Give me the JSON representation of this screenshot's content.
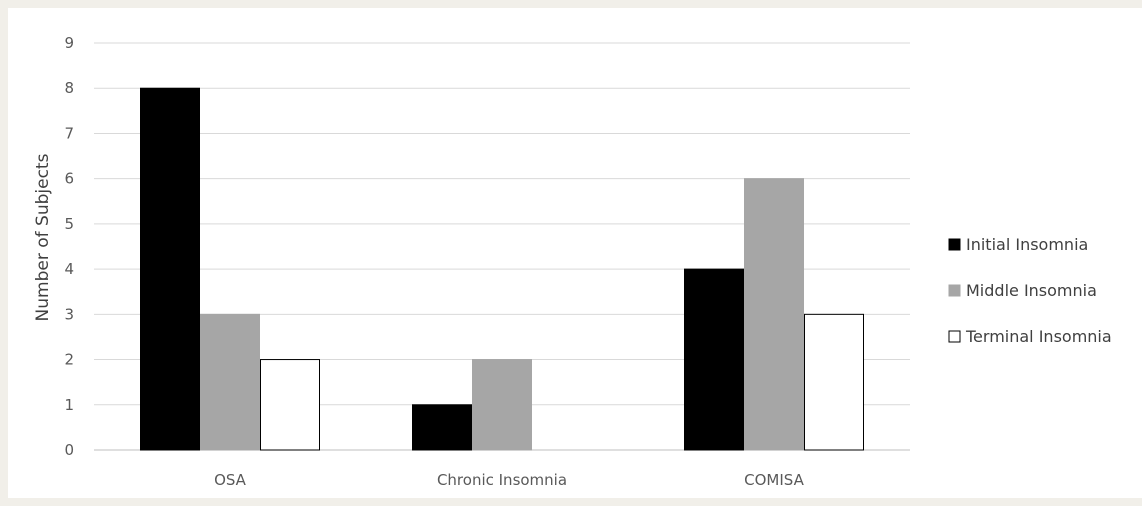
{
  "chart_data": {
    "type": "bar",
    "title": "",
    "xlabel": "",
    "ylabel": "Number of Subjects",
    "ylim": [
      0,
      9
    ],
    "yticks": [
      0,
      1,
      2,
      3,
      4,
      5,
      6,
      7,
      8,
      9
    ],
    "grid": true,
    "legend_position": "right",
    "categories": [
      "OSA",
      "Chronic Insomnia",
      "COMISA"
    ],
    "series": [
      {
        "name": "Initial Insomnia",
        "values": [
          8,
          1,
          4
        ],
        "color": "#000000",
        "stroke": "#000000"
      },
      {
        "name": "Middle Insomnia",
        "values": [
          3,
          2,
          6
        ],
        "color": "#a6a6a6",
        "stroke": "#a6a6a6"
      },
      {
        "name": "Terminal Insomnia",
        "values": [
          2,
          0,
          3
        ],
        "color": "#ffffff",
        "stroke": "#000000"
      }
    ]
  }
}
